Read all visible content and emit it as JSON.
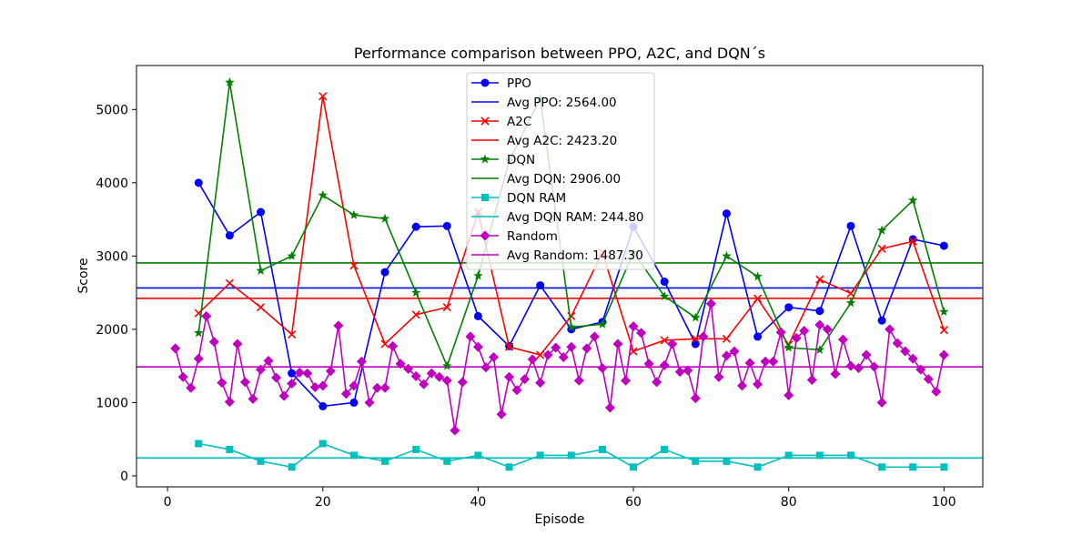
{
  "chart_data": {
    "type": "line",
    "title": "Performance comparison between PPO, A2C, and DQN´s",
    "xlabel": "Episode",
    "ylabel": "Score",
    "xlim": [
      -4,
      105
    ],
    "ylim": [
      -150,
      5600
    ],
    "xticks": [
      0,
      20,
      40,
      60,
      80,
      100
    ],
    "yticks": [
      0,
      1000,
      2000,
      3000,
      4000,
      5000
    ],
    "grid": false,
    "legend_position": "top-center",
    "series": [
      {
        "name": "PPO",
        "color": "#0000ff",
        "marker": "circle",
        "x": [
          4,
          8,
          12,
          16,
          20,
          24,
          28,
          32,
          36,
          40,
          44,
          48,
          52,
          56,
          60,
          64,
          68,
          72,
          76,
          80,
          84,
          88,
          92,
          96,
          100
        ],
        "y": [
          4000,
          3280,
          3600,
          1400,
          950,
          1000,
          2780,
          3400,
          3410,
          2180,
          1770,
          2600,
          2000,
          2100,
          3400,
          2650,
          1800,
          3580,
          1900,
          2300,
          2250,
          3410,
          2120,
          3230,
          3140
        ],
        "avg": 2564.0,
        "avg_label": "Avg PPO: 2564.00"
      },
      {
        "name": "A2C",
        "color": "#ff0000",
        "marker": "x",
        "x": [
          4,
          8,
          12,
          16,
          20,
          24,
          28,
          32,
          36,
          40,
          44,
          48,
          52,
          56,
          60,
          64,
          68,
          72,
          76,
          80,
          84,
          88,
          92,
          96,
          100
        ],
        "y": [
          2220,
          2630,
          2300,
          1930,
          5180,
          2870,
          1800,
          2200,
          2300,
          3600,
          1760,
          1650,
          2180,
          3050,
          1700,
          1850,
          1870,
          1870,
          2420,
          1790,
          2680,
          2490,
          3100,
          3200,
          1990
        ],
        "avg": 2423.2,
        "avg_label": "Avg A2C: 2423.20"
      },
      {
        "name": "DQN",
        "color": "#008000",
        "marker": "star",
        "x": [
          4,
          8,
          12,
          16,
          20,
          24,
          28,
          32,
          36,
          40,
          44,
          48,
          52,
          56,
          60,
          64,
          68,
          72,
          76,
          80,
          84,
          88,
          92,
          96,
          100
        ],
        "y": [
          1950,
          5370,
          2800,
          3000,
          3830,
          3560,
          3510,
          2500,
          1500,
          2730,
          4300,
          5150,
          2030,
          2070,
          3050,
          2450,
          2160,
          3000,
          2720,
          1750,
          1720,
          2360,
          3350,
          3760,
          2240
        ],
        "avg": 2906.0,
        "avg_label": "Avg DQN: 2906.00"
      },
      {
        "name": "DQN RAM",
        "color": "#00bfbf",
        "marker": "square",
        "x": [
          4,
          8,
          12,
          16,
          20,
          24,
          28,
          32,
          36,
          40,
          44,
          48,
          52,
          56,
          60,
          64,
          68,
          72,
          76,
          80,
          84,
          88,
          92,
          96,
          100
        ],
        "y": [
          440,
          360,
          200,
          120,
          440,
          280,
          200,
          360,
          200,
          280,
          120,
          280,
          280,
          360,
          120,
          360,
          200,
          200,
          120,
          280,
          280,
          280,
          120,
          120,
          120
        ],
        "avg": 244.8,
        "avg_label": "Avg DQN RAM: 244.80"
      },
      {
        "name": "Random",
        "color": "#bf00bf",
        "marker": "diamond",
        "x": [
          1,
          2,
          3,
          4,
          5,
          6,
          7,
          8,
          9,
          10,
          11,
          12,
          13,
          14,
          15,
          16,
          17,
          18,
          19,
          20,
          21,
          22,
          23,
          24,
          25,
          26,
          27,
          28,
          29,
          30,
          31,
          32,
          33,
          34,
          35,
          36,
          37,
          38,
          39,
          40,
          41,
          42,
          43,
          44,
          45,
          46,
          47,
          48,
          49,
          50,
          51,
          52,
          53,
          54,
          55,
          56,
          57,
          58,
          59,
          60,
          61,
          62,
          63,
          64,
          65,
          66,
          67,
          68,
          69,
          70,
          71,
          72,
          73,
          74,
          75,
          76,
          77,
          78,
          79,
          80,
          81,
          82,
          83,
          84,
          85,
          86,
          87,
          88,
          89,
          90,
          91,
          92,
          93,
          94,
          95,
          96,
          97,
          98,
          99,
          100
        ],
        "y": [
          1740,
          1350,
          1200,
          1600,
          2180,
          1830,
          1270,
          1010,
          1800,
          1280,
          1050,
          1450,
          1570,
          1340,
          1090,
          1260,
          1410,
          1400,
          1210,
          1230,
          1430,
          2050,
          1120,
          1230,
          1560,
          1000,
          1200,
          1200,
          1770,
          1530,
          1460,
          1360,
          1250,
          1400,
          1350,
          1300,
          620,
          1280,
          1900,
          1760,
          1480,
          1620,
          840,
          1350,
          1170,
          1320,
          1590,
          1270,
          1650,
          1750,
          1620,
          1760,
          1300,
          1740,
          1900,
          1470,
          930,
          1800,
          1300,
          2040,
          1950,
          1530,
          1280,
          1510,
          1800,
          1420,
          1440,
          1060,
          1900,
          2350,
          1350,
          1640,
          1700,
          1230,
          1540,
          1250,
          1560,
          1560,
          1960,
          1100,
          1880,
          1980,
          1310,
          2060,
          2000,
          1390,
          1860,
          1500,
          1470,
          1650,
          1490,
          1000,
          2000,
          1810,
          1700,
          1600,
          1450,
          1320,
          1150,
          1650
        ],
        "avg": 1487.3,
        "avg_label": "Avg Random: 1487.30"
      }
    ]
  }
}
